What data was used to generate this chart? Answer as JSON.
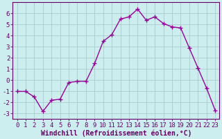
{
  "x": [
    0,
    1,
    2,
    3,
    4,
    5,
    6,
    7,
    8,
    9,
    10,
    11,
    12,
    13,
    14,
    15,
    16,
    17,
    18,
    19,
    20,
    21,
    22,
    23
  ],
  "y": [
    -1,
    -1,
    -1.5,
    -2.8,
    -1.8,
    -1.7,
    -0.2,
    -0.1,
    -0.1,
    1.5,
    3.5,
    4.1,
    5.5,
    5.7,
    6.4,
    5.4,
    5.7,
    5.1,
    4.8,
    4.7,
    2.9,
    1.1,
    -0.7,
    -2.7
  ],
  "line_color": "#990099",
  "marker": "+",
  "marker_size": 4,
  "marker_lw": 1.0,
  "line_width": 1.0,
  "bg_color": "#cceeee",
  "grid_color": "#aacccc",
  "axis_color": "#660066",
  "xlabel": "Windchill (Refroidissement éolien,°C)",
  "xlabel_fontsize": 7,
  "tick_fontsize": 6.5,
  "ylim": [
    -3.5,
    7
  ],
  "xlim": [
    -0.5,
    23.5
  ],
  "yticks": [
    -3,
    -2,
    -1,
    0,
    1,
    2,
    3,
    4,
    5,
    6
  ],
  "xticks": [
    0,
    1,
    2,
    3,
    4,
    5,
    6,
    7,
    8,
    9,
    10,
    11,
    12,
    13,
    14,
    15,
    16,
    17,
    18,
    19,
    20,
    21,
    22,
    23
  ]
}
